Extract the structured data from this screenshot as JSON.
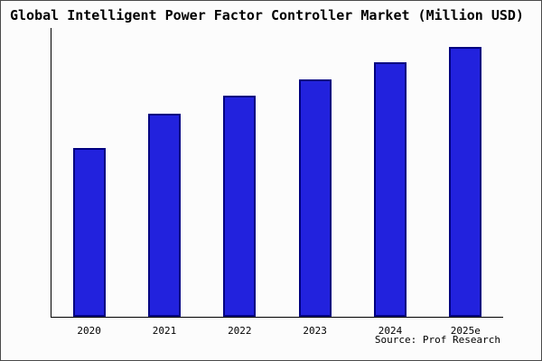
{
  "title": "Global Intelligent Power Factor Controller Market (Million USD)",
  "source": "Source: Prof Research",
  "colors": {
    "bar_fill": "#2222dd",
    "bar_border": "#000080",
    "axis": "#000000",
    "background": "#fcfcfc"
  },
  "chart_data": {
    "type": "bar",
    "categories": [
      "2020",
      "2021",
      "2022",
      "2023",
      "2024",
      "2025e"
    ],
    "values": [
      187,
      225,
      245,
      263,
      282,
      299
    ],
    "title": "Global Intelligent Power Factor Controller Market (Million USD)",
    "xlabel": "",
    "ylabel": "",
    "ylim": [
      0,
      320
    ],
    "grid": false,
    "legend": false
  }
}
